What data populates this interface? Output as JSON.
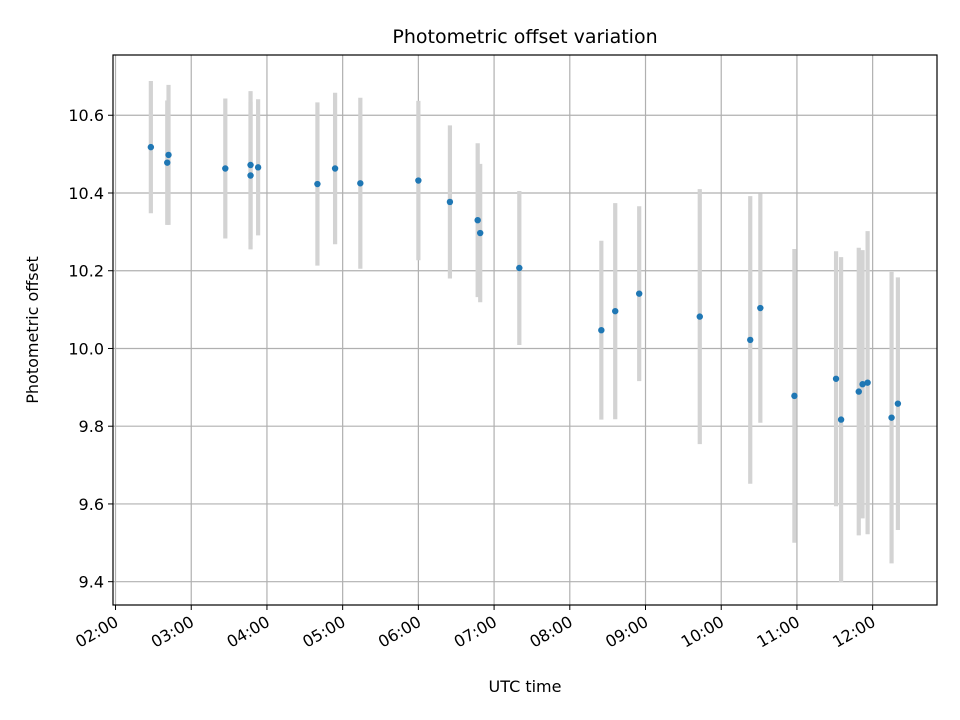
{
  "chart_data": {
    "type": "scatter",
    "title": "Photometric offset variation",
    "xlabel": "UTC time",
    "ylabel": "Photometric offset",
    "xlim": [
      "01:58",
      "12:51"
    ],
    "ylim": [
      9.34,
      10.755
    ],
    "grid": true,
    "x_ticks": [
      "02:00",
      "03:00",
      "04:00",
      "05:00",
      "06:00",
      "07:00",
      "08:00",
      "09:00",
      "10:00",
      "11:00",
      "12:00"
    ],
    "y_ticks": [
      9.4,
      9.6,
      9.8,
      10.0,
      10.2,
      10.4,
      10.6
    ],
    "y_tick_labels": [
      "9.4",
      "9.6",
      "9.8",
      "10.0",
      "10.2",
      "10.4",
      "10.6"
    ],
    "colors": {
      "point": "#1f77b4",
      "errorbar": "#d3d3d3",
      "grid": "#b0b0b0",
      "axes": "#000000"
    },
    "series": [
      {
        "points": [
          {
            "x": "02:28",
            "y": 10.518,
            "err": 0.17
          },
          {
            "x": "02:41",
            "y": 10.478,
            "err": 0.16
          },
          {
            "x": "02:42",
            "y": 10.498,
            "err": 0.18
          },
          {
            "x": "03:27",
            "y": 10.463,
            "err": 0.18
          },
          {
            "x": "03:47",
            "y": 10.472,
            "err": 0.19
          },
          {
            "x": "03:47",
            "y": 10.445,
            "err": 0.19
          },
          {
            "x": "03:53",
            "y": 10.466,
            "err": 0.175
          },
          {
            "x": "04:40",
            "y": 10.423,
            "err": 0.21
          },
          {
            "x": "04:54",
            "y": 10.463,
            "err": 0.195
          },
          {
            "x": "05:14",
            "y": 10.425,
            "err": 0.22
          },
          {
            "x": "06:00",
            "y": 10.432,
            "err": 0.205
          },
          {
            "x": "06:25",
            "y": 10.377,
            "err": 0.197
          },
          {
            "x": "06:47",
            "y": 10.33,
            "err": 0.198
          },
          {
            "x": "06:49",
            "y": 10.297,
            "err": 0.178
          },
          {
            "x": "07:20",
            "y": 10.207,
            "err": 0.198
          },
          {
            "x": "08:25",
            "y": 10.047,
            "err": 0.23
          },
          {
            "x": "08:36",
            "y": 10.096,
            "err": 0.278
          },
          {
            "x": "08:55",
            "y": 10.141,
            "err": 0.225
          },
          {
            "x": "09:43",
            "y": 10.082,
            "err": 0.328
          },
          {
            "x": "10:23",
            "y": 10.022,
            "err": 0.37
          },
          {
            "x": "10:31",
            "y": 10.104,
            "err": 0.295
          },
          {
            "x": "10:58",
            "y": 9.878,
            "err": 0.378
          },
          {
            "x": "11:31",
            "y": 9.922,
            "err": 0.328
          },
          {
            "x": "11:35",
            "y": 9.817,
            "err": 0.418
          },
          {
            "x": "11:49",
            "y": 9.889,
            "err": 0.37
          },
          {
            "x": "11:52",
            "y": 9.908,
            "err": 0.345
          },
          {
            "x": "11:56",
            "y": 9.912,
            "err": 0.39
          },
          {
            "x": "12:15",
            "y": 9.822,
            "err": 0.375
          },
          {
            "x": "12:20",
            "y": 9.858,
            "err": 0.325
          }
        ]
      }
    ]
  }
}
